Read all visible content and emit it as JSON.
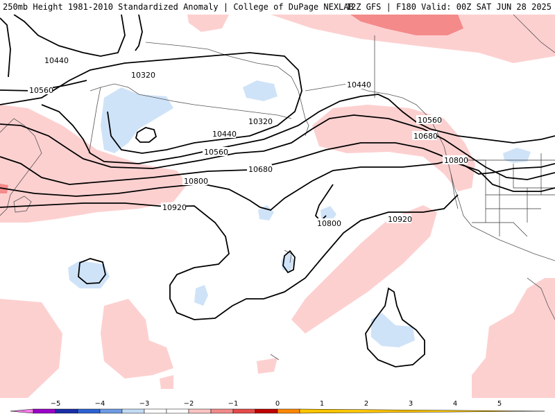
{
  "header": {
    "title_left": "250mb Height 1981-2010 Standardized Anomaly | College of DuPage NEXLAB",
    "title_right": "12Z GFS | F180 Valid: 00Z SAT JUN 28 2025"
  },
  "contour_labels": {
    "c1": "10440",
    "c2": "10320",
    "c3": "10560",
    "c4": "10320",
    "c5": "10440",
    "c6": "10560",
    "c7": "10680",
    "c8": "10800",
    "c9": "10920",
    "c10": "10440",
    "c11": "10560",
    "c12": "10680",
    "c13": "10800",
    "c14": "10800",
    "c15": "10920"
  },
  "colorbar": {
    "ticks": [
      "−5",
      "−4",
      "−3",
      "−2",
      "−1",
      "0",
      "1",
      "2",
      "3",
      "4",
      "5"
    ],
    "colors": [
      "#f47ce8",
      "#9b00c8",
      "#1a2ea8",
      "#2c62d2",
      "#6e9ae4",
      "#c4dcf6",
      "#ffffff",
      "#ffffff",
      "#fbc4c4",
      "#f28b8b",
      "#e64a4a",
      "#c00000",
      "#ff8800",
      "#ffc600"
    ]
  },
  "colors": {
    "positive_light": "#fdd0d0",
    "positive_medium": "#f48a8a",
    "negative_light": "#cfe3f8",
    "contour": "#000000",
    "coast": "#555555"
  }
}
